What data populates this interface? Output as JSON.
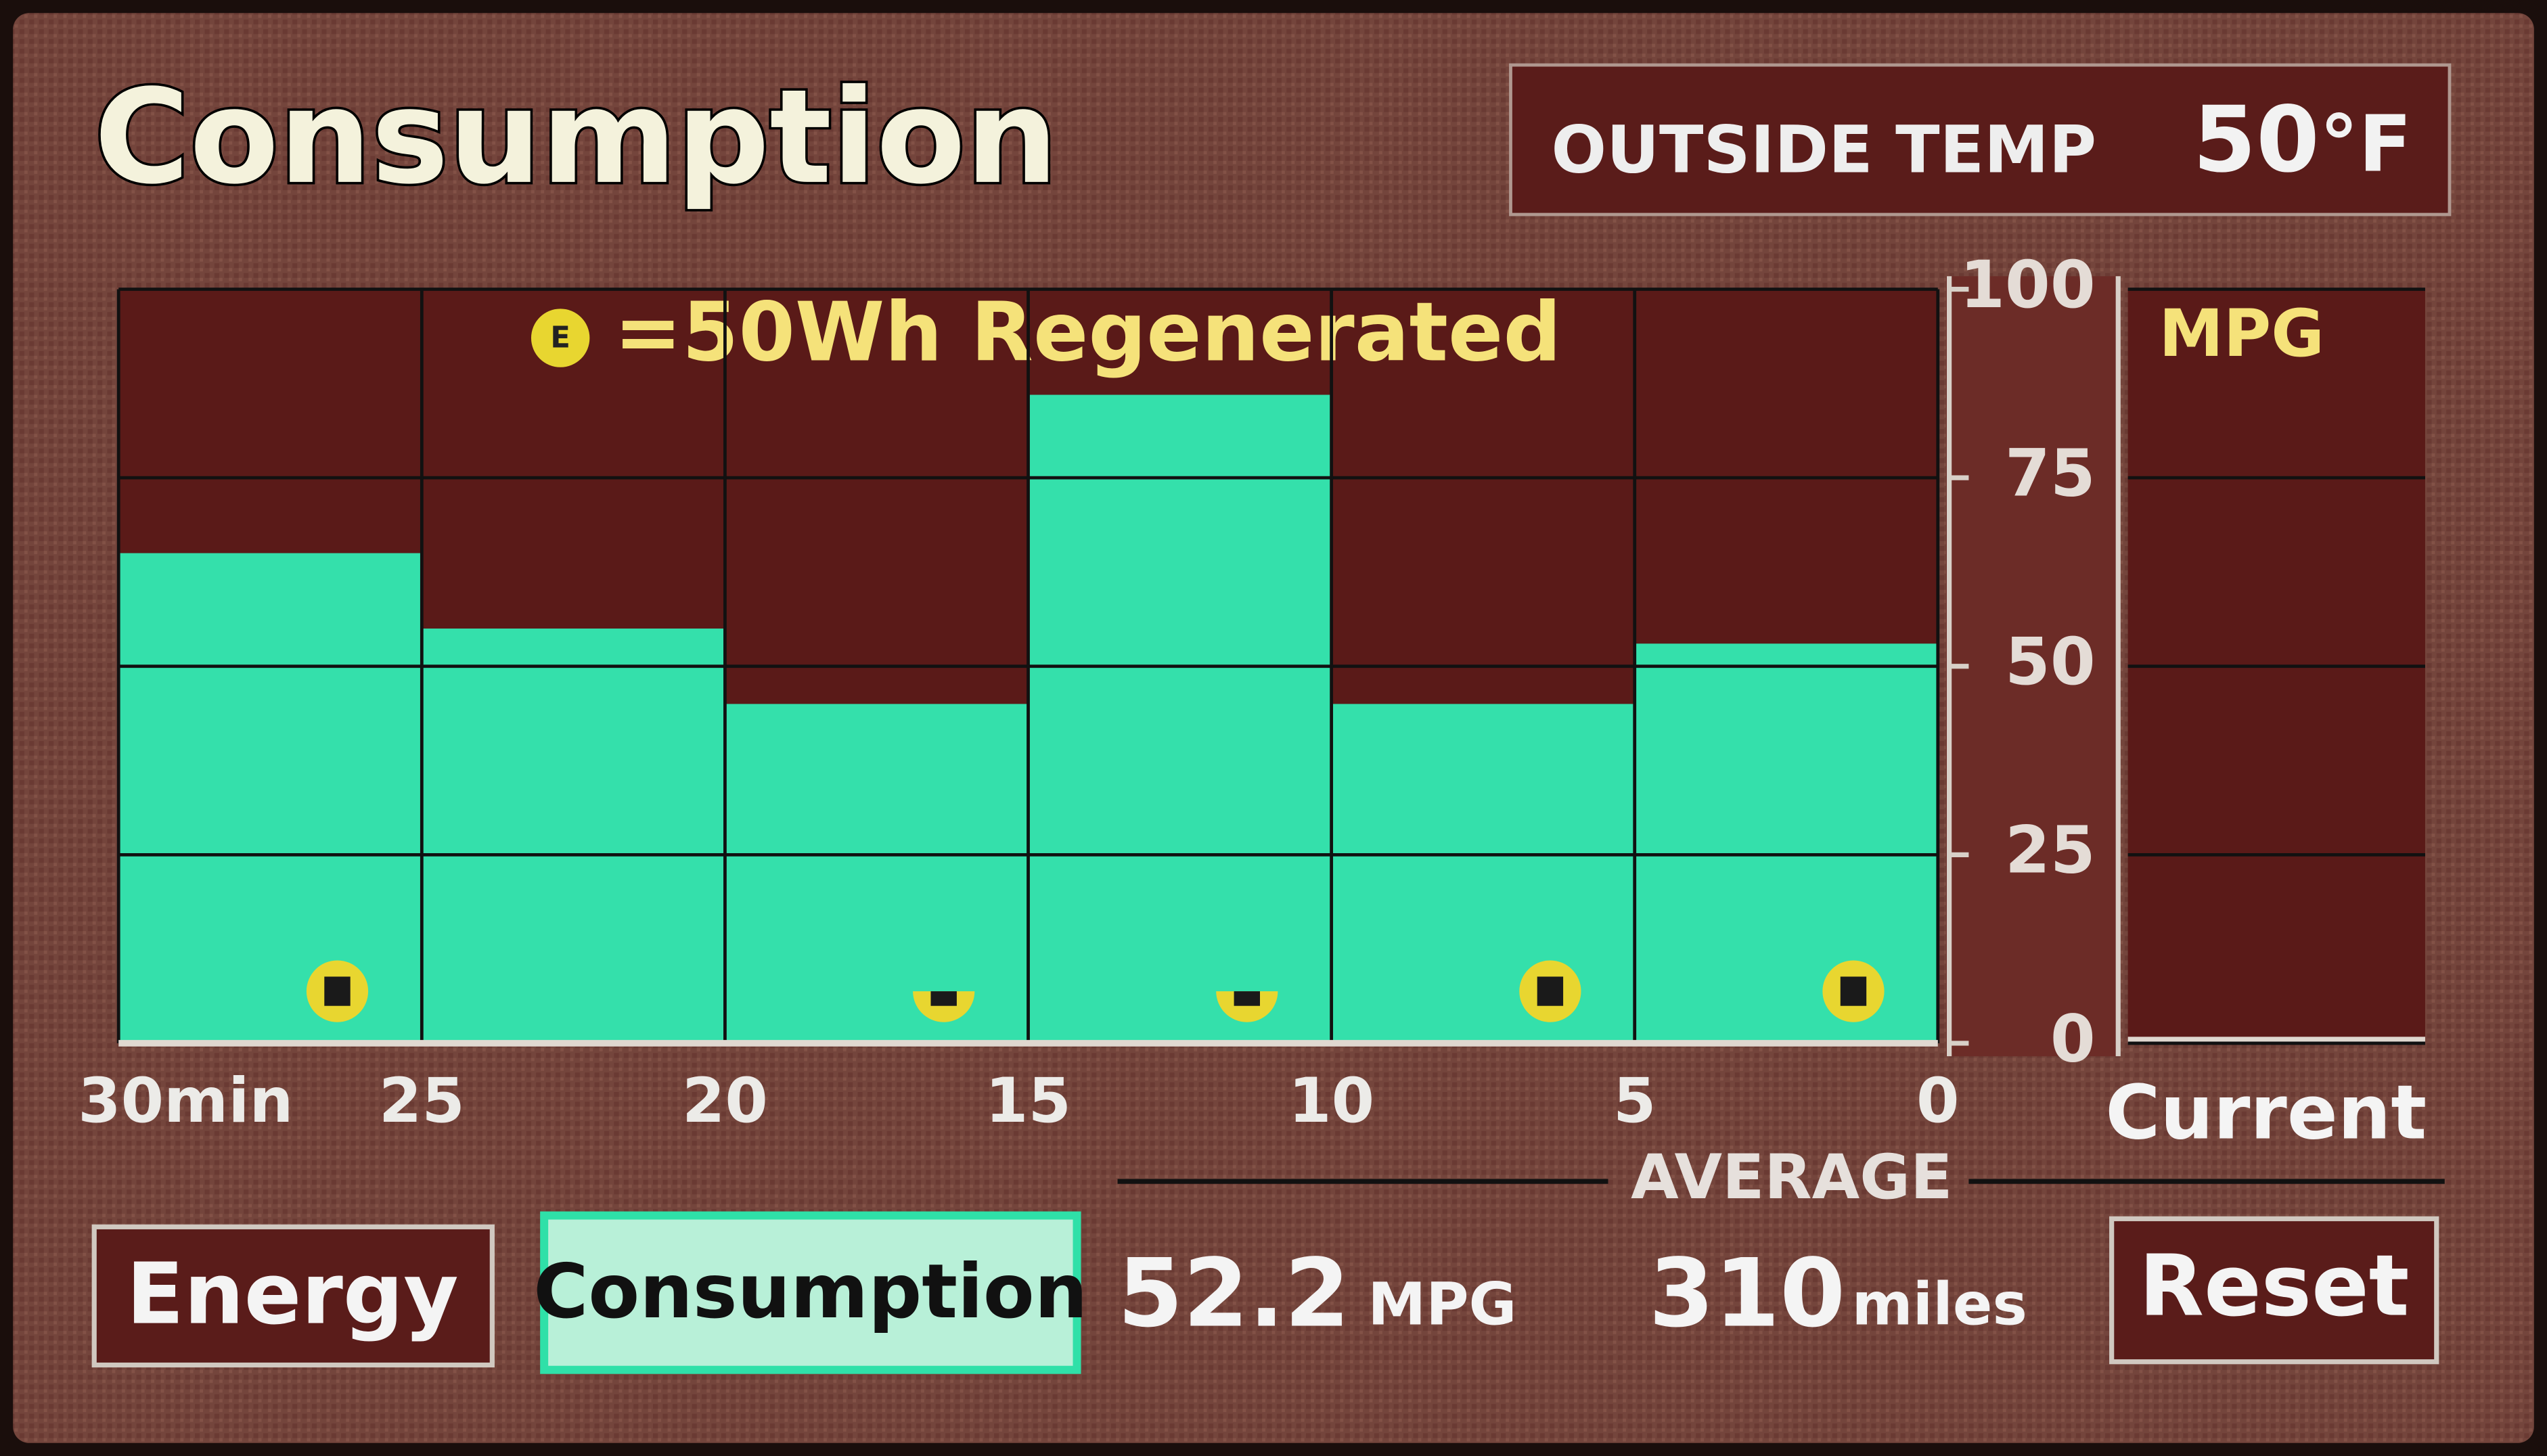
{
  "header": {
    "title": "Consumption",
    "outside_temp_label": "OUTSIDE TEMP",
    "outside_temp": 50,
    "outside_temp_unit": "°F"
  },
  "chart_data": {
    "type": "histogram",
    "legend": "=50Wh Regenerated",
    "bins": [
      30,
      25,
      20,
      15,
      10,
      5,
      0
    ],
    "values": [
      65,
      55,
      45,
      86,
      45,
      53
    ],
    "color": "#34e0ab",
    "regen": [
      1,
      0,
      0.5,
      0.5,
      1,
      1
    ],
    "regen_color": "#e8d630",
    "xlim": [
      30,
      0
    ],
    "xticks": [
      {
        "value": 30,
        "label": "30min"
      },
      25,
      20,
      15,
      10,
      5,
      0
    ],
    "ylim": [
      0,
      100
    ],
    "yticks": [
      0,
      25,
      50,
      75,
      100
    ],
    "grid": true,
    "current_panel": {
      "title": "MPG",
      "label": "Current"
    }
  },
  "average": {
    "label": "AVERAGE",
    "mpg": 52.2,
    "mpg_unit": "MPG",
    "distance": 310,
    "distance_unit": "miles"
  },
  "buttons": [
    "Energy",
    "Consumption",
    "Reset"
  ]
}
